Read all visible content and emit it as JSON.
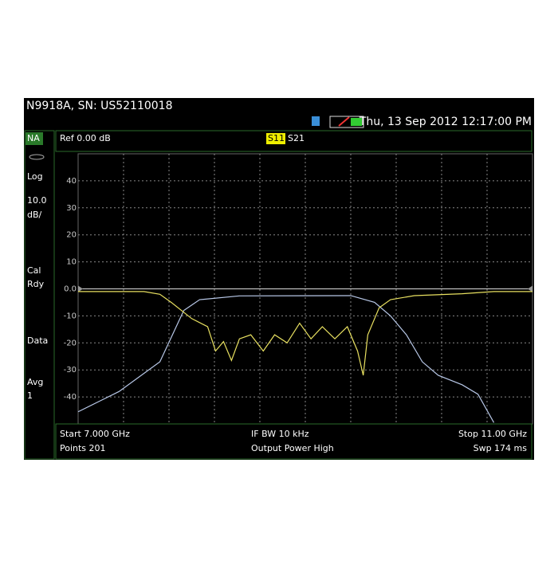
{
  "header": {
    "title": "N9918A, SN: US52110018",
    "datetime": "Thu, 13 Sep 2012 12:17:00 PM"
  },
  "sidebar": {
    "mode": "NA",
    "scale_type": "Log",
    "scale_value": "10.0",
    "scale_unit": "dB/",
    "cal_1": "Cal",
    "cal_2": "Rdy",
    "display": "Data",
    "avg_label": "Avg",
    "avg_value": "1"
  },
  "ref_label": "Ref 0.00 dB",
  "traces": {
    "active": "S11",
    "other": "S21"
  },
  "chart_data": {
    "type": "line",
    "x_divisions": 10,
    "ref_level": 0,
    "grid": true,
    "xlim": [
      7,
      11
    ],
    "ylim": [
      -50,
      50
    ],
    "yticks": [
      40,
      30,
      20,
      10,
      {
        "value": 0,
        "label": "0.0"
      },
      -10,
      -20,
      -30,
      -40
    ],
    "series": [
      {
        "name": "S21",
        "color": "#b8c8e8",
        "x": [
          7.0,
          7.36,
          7.72,
          7.93,
          8.07,
          8.42,
          9.4,
          9.61,
          9.75,
          9.89,
          10.03,
          10.17,
          10.38,
          10.52,
          10.66
        ],
        "values": [
          -45.5,
          -38,
          -27,
          -8,
          -4,
          -2.6,
          -2.5,
          -5,
          -10,
          -17,
          -27,
          -32,
          -35.5,
          -39,
          -49.5
        ]
      },
      {
        "name": "S11",
        "color": "#e8e060",
        "x": [
          7.0,
          7.58,
          7.72,
          7.82,
          8.0,
          8.14,
          8.21,
          8.28,
          8.35,
          8.42,
          8.52,
          8.63,
          8.73,
          8.84,
          8.95,
          9.05,
          9.15,
          9.26,
          9.37,
          9.46,
          9.51,
          9.55,
          9.65,
          9.75,
          9.96,
          10.38,
          10.66,
          11.0
        ],
        "values": [
          -1,
          -1,
          -2,
          -5,
          -11,
          -14,
          -23,
          -19.5,
          -26.5,
          -18.5,
          -17,
          -23,
          -17,
          -20,
          -12.7,
          -18.5,
          -14,
          -18.5,
          -14,
          -23,
          -32,
          -17,
          -7,
          -4,
          -2.5,
          -1.8,
          -1,
          -1
        ]
      }
    ]
  },
  "footer": {
    "start": "Start 7.000 GHz",
    "ifbw": "IF BW 10 kHz",
    "stop": "Stop 11.00 GHz",
    "points": "Points 201",
    "power": "Output Power High",
    "sweep": "Swp 174 ms"
  }
}
